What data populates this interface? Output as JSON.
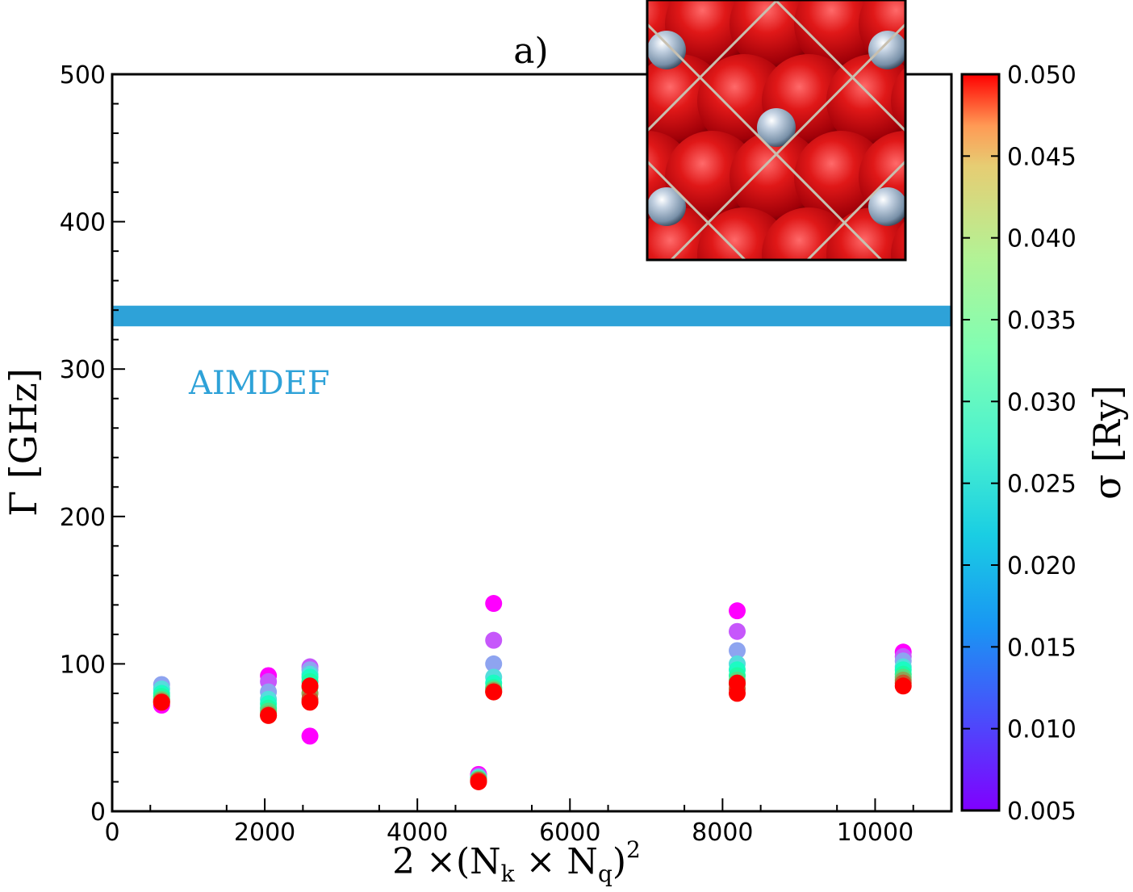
{
  "chart_data": {
    "type": "scatter",
    "title": "a)",
    "xlabel": "2 ×(N_k × N_q)²",
    "xlabel_parts": {
      "prefix": "2 ×(N",
      "sub_k": "k",
      "times": " × N",
      "sub_q": "q",
      "close": ")",
      "sup": "2"
    },
    "ylabel": "Γ [GHz]",
    "xlim": [
      0,
      11000
    ],
    "ylim": [
      0,
      500
    ],
    "xticks": [
      0,
      2000,
      4000,
      6000,
      8000,
      10000
    ],
    "xtick_labels": [
      "0",
      "2000",
      "4000",
      "6000",
      "8000",
      "10000"
    ],
    "yticks": [
      0,
      100,
      200,
      300,
      400,
      500
    ],
    "ytick_labels": [
      "0",
      "100",
      "200",
      "300",
      "400",
      "500"
    ],
    "reference_band": {
      "label": "AIMDEF",
      "y_low": 329,
      "y_high": 343,
      "color": "#2ea2d8"
    },
    "colorbar": {
      "label": "σ [Ry]",
      "min": 0.005,
      "max": 0.05,
      "ticks": [
        0.005,
        0.01,
        0.015,
        0.02,
        0.025,
        0.03,
        0.035,
        0.04,
        0.045,
        0.05
      ],
      "tick_labels": [
        "0.005",
        "0.010",
        "0.015",
        "0.020",
        "0.025",
        "0.030",
        "0.035",
        "0.040",
        "0.045",
        "0.050"
      ],
      "colormap": "rainbow"
    },
    "series": [
      {
        "name": "σ=0.005",
        "sigma": 0.005,
        "x": [
          648,
          2048,
          2592,
          4802,
          5000,
          8192,
          10368
        ],
        "y": [
          72,
          92,
          51,
          25,
          141,
          136,
          108
        ]
      },
      {
        "name": "σ=0.010",
        "sigma": 0.01,
        "x": [
          648,
          2048,
          2592,
          4802,
          5000,
          8192,
          10368
        ],
        "y": [
          76,
          88,
          98,
          24,
          116,
          122,
          105
        ]
      },
      {
        "name": "σ=0.015",
        "sigma": 0.015,
        "x": [
          648,
          2048,
          2592,
          4802,
          5000,
          8192,
          10368
        ],
        "y": [
          86,
          81,
          96,
          23,
          100,
          109,
          102
        ]
      },
      {
        "name": "σ=0.020",
        "sigma": 0.02,
        "x": [
          648,
          2048,
          2592,
          4802,
          5000,
          8192,
          10368
        ],
        "y": [
          83,
          76,
          93,
          23,
          91,
          100,
          98
        ]
      },
      {
        "name": "σ=0.025",
        "sigma": 0.025,
        "x": [
          648,
          2048,
          2592,
          4802,
          5000,
          8192,
          10368
        ],
        "y": [
          80,
          73,
          91,
          22,
          87,
          96,
          96
        ]
      },
      {
        "name": "σ=0.030",
        "sigma": 0.03,
        "x": [
          648,
          2048,
          2592,
          4802,
          5000,
          8192,
          10368
        ],
        "y": [
          78,
          70,
          88,
          22,
          84,
          92,
          93
        ]
      },
      {
        "name": "σ=0.035",
        "sigma": 0.035,
        "x": [
          648,
          2048,
          2592,
          4802,
          5000,
          8192,
          10368
        ],
        "y": [
          76,
          68,
          84,
          22,
          83,
          89,
          91
        ]
      },
      {
        "name": "σ=0.040",
        "sigma": 0.04,
        "x": [
          648,
          2048,
          2592,
          4802,
          5000,
          8192,
          10368
        ],
        "y": [
          75,
          66,
          80,
          21,
          82,
          86,
          89
        ]
      },
      {
        "name": "σ=0.045",
        "sigma": 0.045,
        "x": [
          648,
          2048,
          2592,
          4802,
          5000,
          8192,
          10368
        ],
        "y": [
          74,
          65,
          76,
          21,
          81,
          83,
          87
        ]
      },
      {
        "name": "σ=0.050",
        "sigma": 0.05,
        "x": [
          648,
          2048,
          2592,
          4802,
          5000,
          8192,
          10368
        ],
        "y": [
          74,
          65,
          74,
          20,
          81,
          80,
          85
        ]
      }
    ],
    "red_extra_points": [
      {
        "x": 2592,
        "y": 85
      },
      {
        "x": 8192,
        "y": 87
      }
    ]
  },
  "inset": {
    "description_icon": "surface-atoms-icon"
  }
}
